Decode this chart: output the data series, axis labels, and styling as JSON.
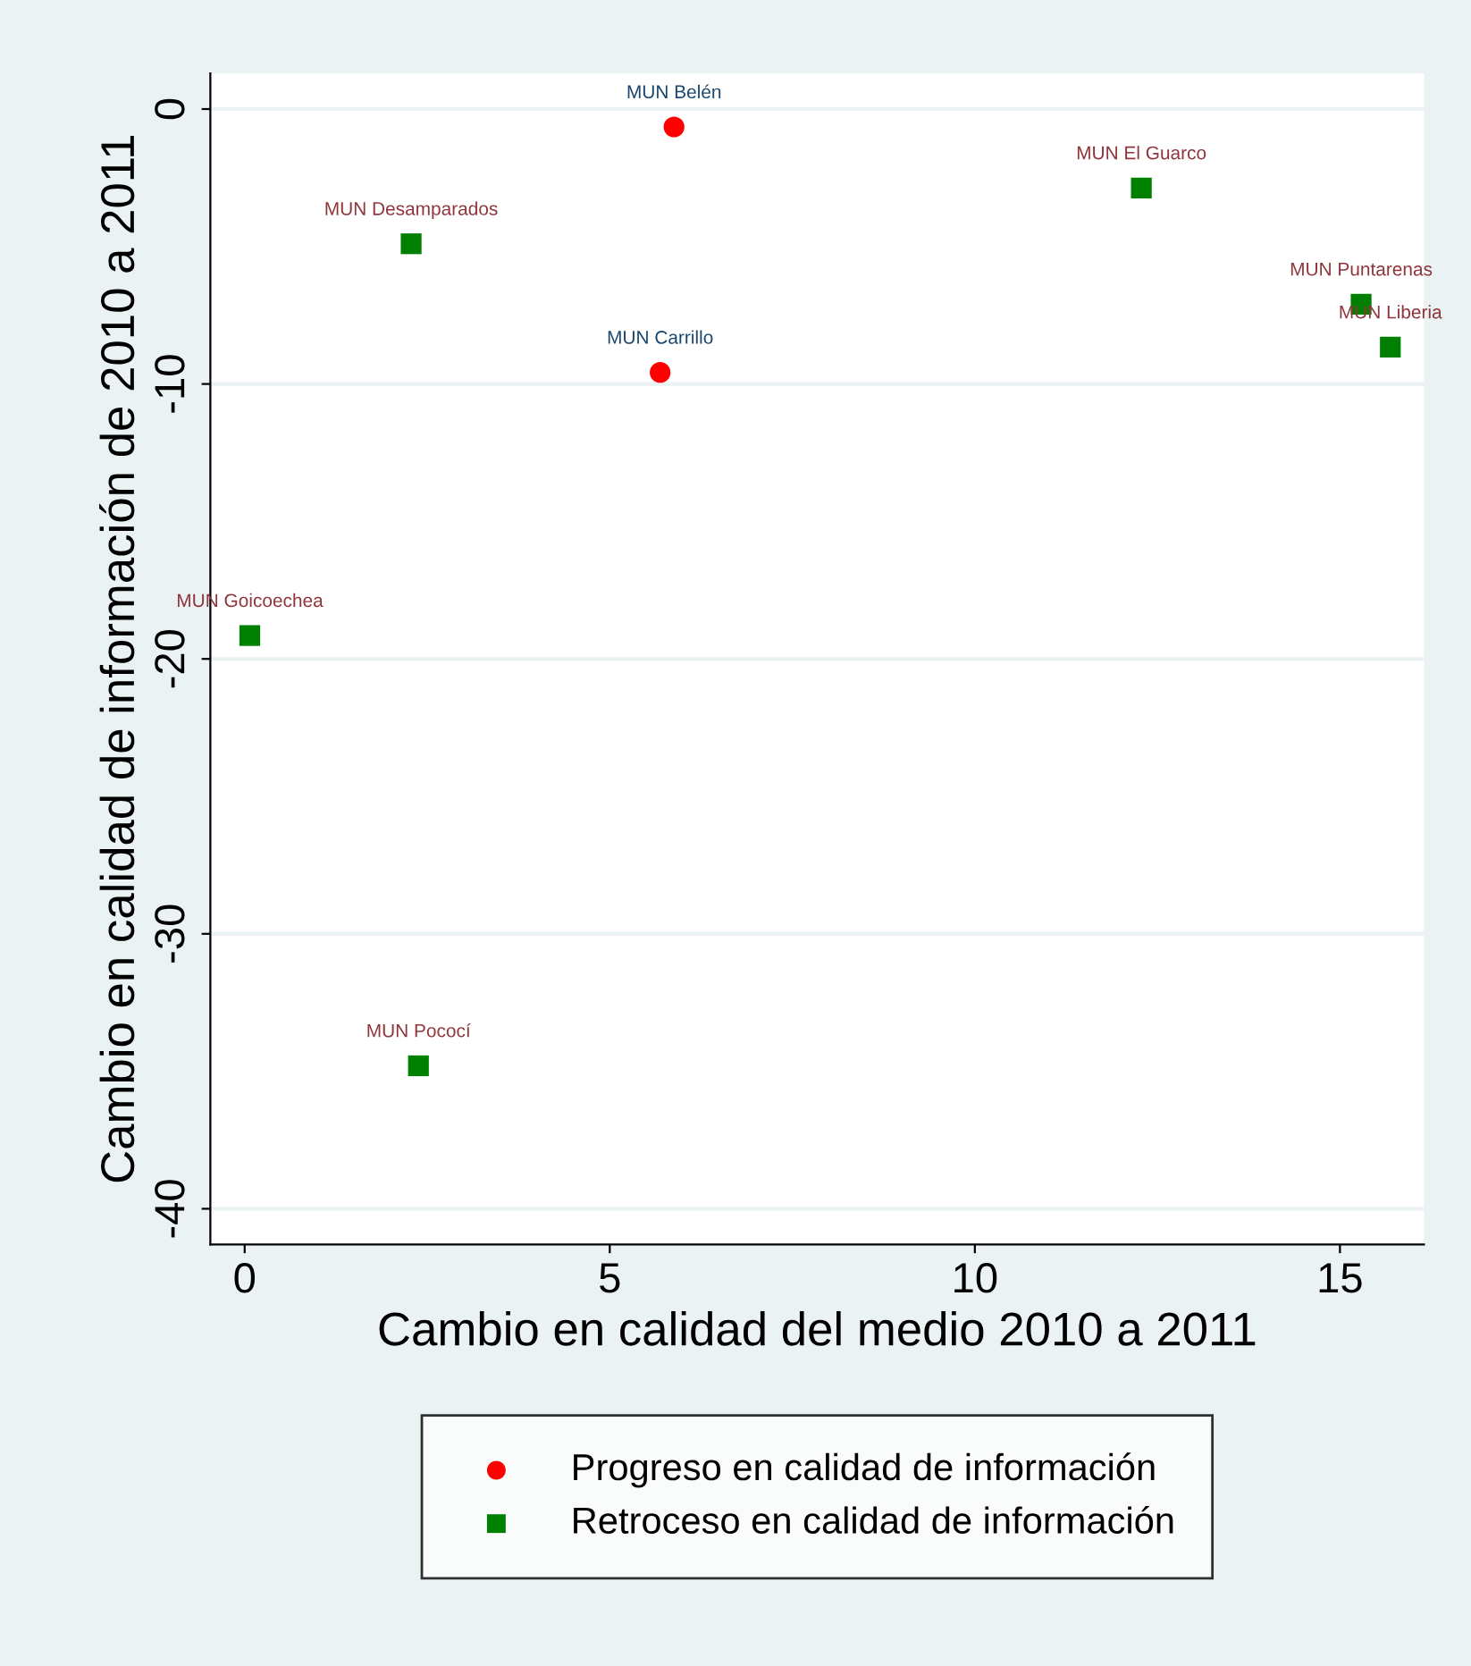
{
  "chart_data": {
    "type": "scatter",
    "xlabel": "Cambio en calidad del medio 2010 a 2011",
    "ylabel": "Cambio en calidad de información de 2010 a 2011",
    "xlim": [
      -0.47,
      16.15
    ],
    "ylim": [
      -41.3,
      1.3
    ],
    "xticks": [
      0,
      5,
      10,
      15
    ],
    "yticks": [
      -40,
      -30,
      -20,
      -10,
      0
    ],
    "grid": "y",
    "legend": "bottom",
    "series": [
      {
        "name": "Progreso en calidad de información",
        "color": "#ff0000",
        "marker": "circle",
        "x": [
          5.88,
          5.69
        ],
        "values": [
          -0.65,
          -9.58
        ]
      },
      {
        "name": "Retroceso en calidad de información",
        "color": "#008000",
        "marker": "square",
        "x": [
          2.28,
          12.28,
          15.29,
          15.69,
          0.07,
          2.38
        ],
        "values": [
          -4.9,
          -2.87,
          -7.1,
          -8.66,
          -19.15,
          -34.8
        ]
      }
    ],
    "annotations": [
      {
        "text": "MUN Belén",
        "x": 5.88,
        "y": -0.65
      },
      {
        "text": "MUN Carrillo",
        "x": 5.69,
        "y": -9.58
      },
      {
        "text": "MUN Desamparados",
        "x": 2.28,
        "y": -4.9
      },
      {
        "text": "MUN El Guarco",
        "x": 12.28,
        "y": -2.87
      },
      {
        "text": "MUN Puntarenas",
        "x": 15.29,
        "y": -7.1
      },
      {
        "text": "MUN Liberia",
        "x": 15.69,
        "y": -8.66
      },
      {
        "text": "MUN Goicoechea",
        "x": 0.07,
        "y": -19.15
      },
      {
        "text": "MUN Pococí",
        "x": 2.38,
        "y": -34.8
      }
    ]
  }
}
